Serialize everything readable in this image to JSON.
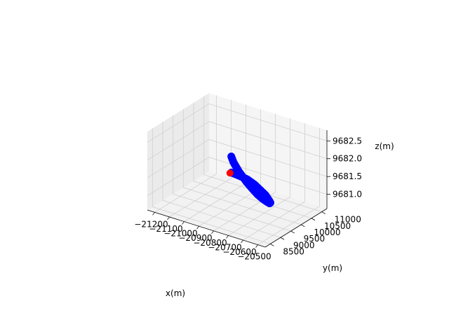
{
  "chart_data": {
    "type": "scatter",
    "projection": "3d",
    "grid": true,
    "legend": "none",
    "xlabel": "x(m)",
    "ylabel": "y(m)",
    "zlabel": "z(m)",
    "xlim": [
      -21250,
      -20450
    ],
    "ylim": [
      8250,
      11250
    ],
    "zlim": [
      9680.6,
      9682.8
    ],
    "xticks": [
      -21200,
      -21100,
      -21000,
      -20900,
      -20800,
      -20700,
      -20600,
      -20500
    ],
    "xtick_labels": [
      "−21200",
      "−21100",
      "−21000",
      "−20900",
      "−20800",
      "−20700",
      "−20600",
      "−20500"
    ],
    "yticks": [
      8500,
      9000,
      9500,
      10000,
      10500,
      11000
    ],
    "ytick_labels": [
      "8500",
      "9000",
      "9500",
      "10000",
      "10500",
      "11000"
    ],
    "zticks": [
      9681.0,
      9681.5,
      9682.0,
      9682.5
    ],
    "ztick_labels": [
      "9681.0",
      "9681.5",
      "9682.0",
      "9682.5"
    ],
    "series": [
      {
        "color": "#0000ff",
        "x": [
          -20926,
          -20904,
          -20860,
          -20800,
          -20760,
          -20730,
          -20705,
          -20684,
          -20676,
          -20680,
          -20692,
          -20722,
          -20757,
          -20795,
          -20840,
          -20887,
          -20931
        ],
        "y": [
          10010,
          9961,
          9900,
          9855,
          9854,
          9888,
          9939,
          10026,
          10084,
          10152,
          10191,
          10223,
          10216,
          10206,
          10173,
          10118,
          10046
        ],
        "z": [
          9681.89,
          9681.77,
          9681.6,
          9681.39,
          9681.25,
          9681.12,
          9681.02,
          9680.92,
          9680.87,
          9680.86,
          9680.88,
          9680.99,
          9681.09,
          9681.2,
          9681.3,
          9681.36,
          9681.42
        ]
      },
      {
        "color": "#ff0000",
        "x": [
          -20938
        ],
        "y": [
          10032
        ],
        "z": [
          9681.4
        ]
      }
    ]
  }
}
